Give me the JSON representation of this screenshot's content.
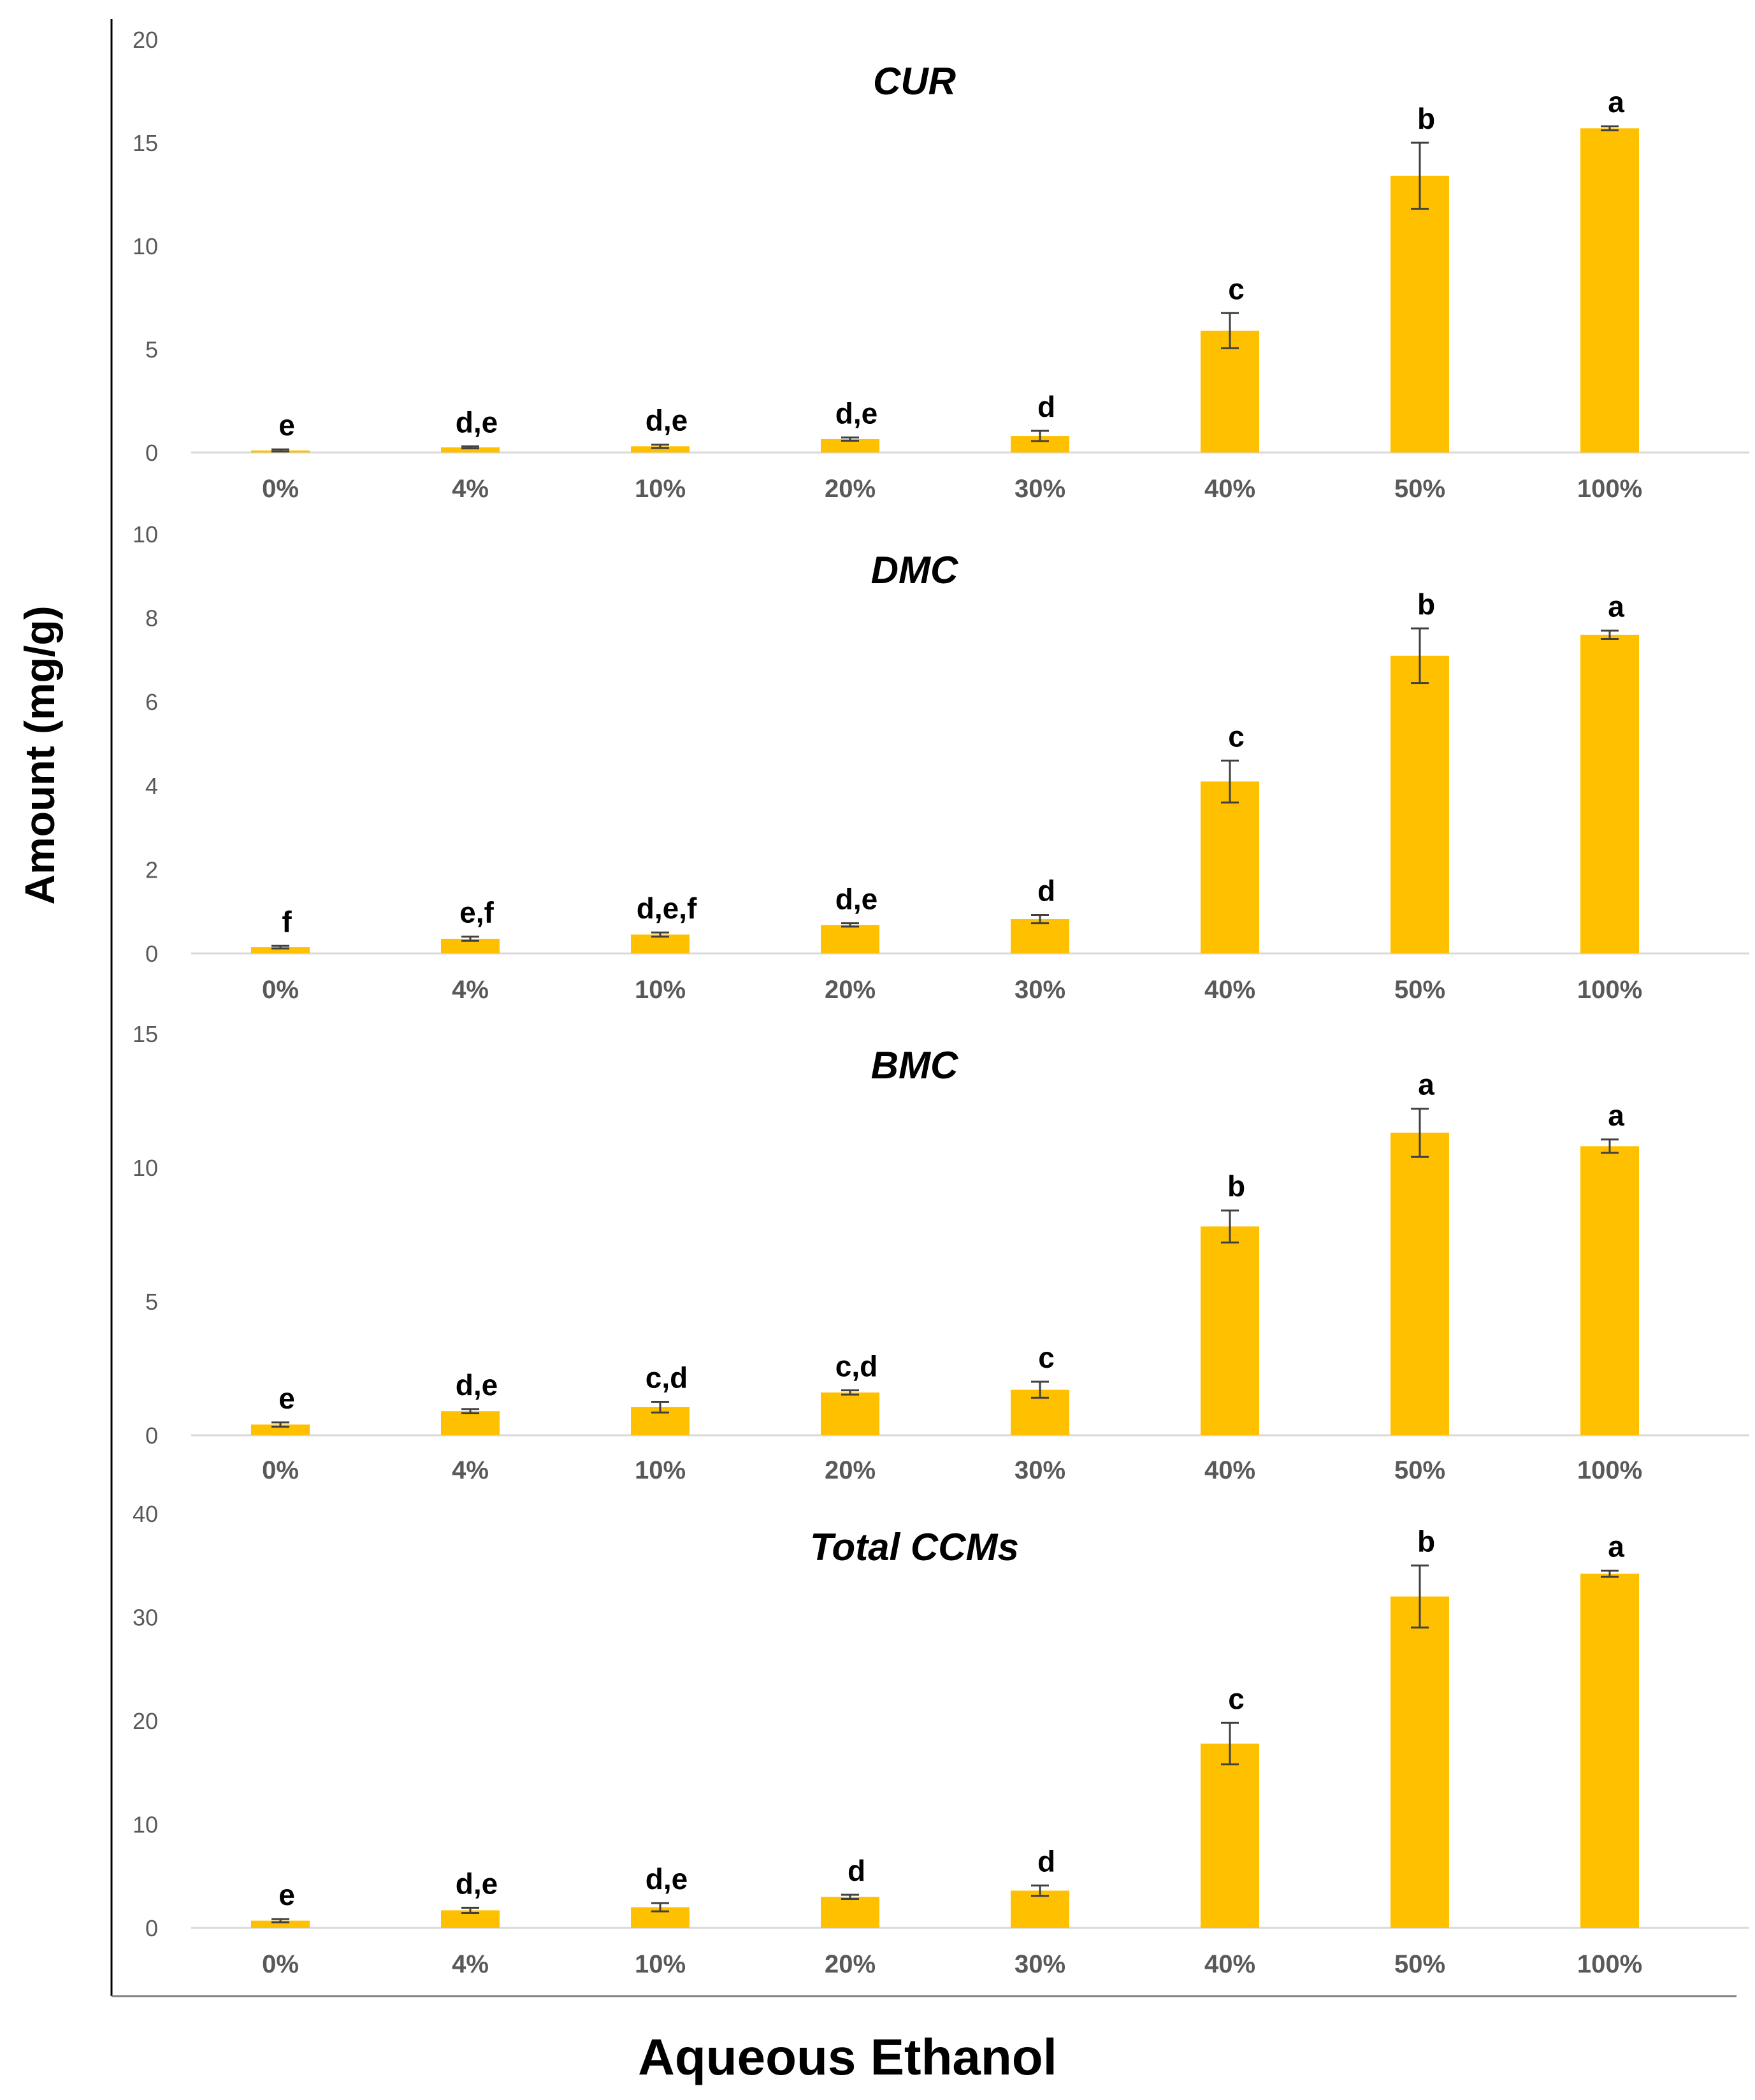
{
  "chart_data": {
    "type": "bar",
    "ylabel": "Amount (mg/g)",
    "xlabel": "Aqueous Ethanol",
    "colors": {
      "bar": "#FFC000",
      "error": "#404040",
      "axis": "#D9D9D9",
      "frame": "#000000"
    },
    "categories": [
      "0%",
      "4%",
      "10%",
      "20%",
      "30%",
      "40%",
      "50%",
      "100%"
    ],
    "panels": [
      {
        "title": "CUR",
        "ylim": [
          0,
          20
        ],
        "yticks": [
          "0",
          "5",
          "10",
          "15",
          "20"
        ],
        "values": [
          0.1,
          0.25,
          0.3,
          0.65,
          0.8,
          5.9,
          13.4,
          15.7
        ],
        "errors": [
          0.05,
          0.05,
          0.08,
          0.08,
          0.25,
          0.85,
          1.6,
          0.1
        ],
        "labels": [
          "e",
          "d,e",
          "d,e",
          "d,e",
          "d",
          "c",
          "b",
          "a"
        ]
      },
      {
        "title": "DMC",
        "ylim": [
          0,
          10
        ],
        "yticks": [
          "0",
          "2",
          "4",
          "6",
          "8",
          "10"
        ],
        "values": [
          0.15,
          0.35,
          0.45,
          0.68,
          0.82,
          4.1,
          7.1,
          7.6
        ],
        "errors": [
          0.03,
          0.05,
          0.05,
          0.04,
          0.1,
          0.5,
          0.65,
          0.1
        ],
        "labels": [
          "f",
          "e,f",
          "d,e,f",
          "d,e",
          "d",
          "c",
          "b",
          "a"
        ]
      },
      {
        "title": "BMC",
        "ylim": [
          0,
          15
        ],
        "yticks": [
          "0",
          "5",
          "10",
          "15"
        ],
        "values": [
          0.4,
          0.9,
          1.05,
          1.6,
          1.7,
          7.8,
          11.3,
          10.8
        ],
        "errors": [
          0.08,
          0.08,
          0.2,
          0.08,
          0.3,
          0.6,
          0.9,
          0.25
        ],
        "labels": [
          "e",
          "d,e",
          "c,d",
          "c,d",
          "c",
          "b",
          "a",
          "a"
        ]
      },
      {
        "title": "Total CCMs",
        "ylim": [
          0,
          40
        ],
        "yticks": [
          "0",
          "10",
          "20",
          "30",
          "40"
        ],
        "values": [
          0.7,
          1.7,
          2.0,
          3.0,
          3.6,
          17.8,
          32.0,
          34.2
        ],
        "errors": [
          0.15,
          0.25,
          0.4,
          0.2,
          0.5,
          2.0,
          3.0,
          0.3
        ],
        "labels": [
          "e",
          "d,e",
          "d,e",
          "d",
          "d",
          "c",
          "b",
          "a"
        ]
      }
    ]
  }
}
